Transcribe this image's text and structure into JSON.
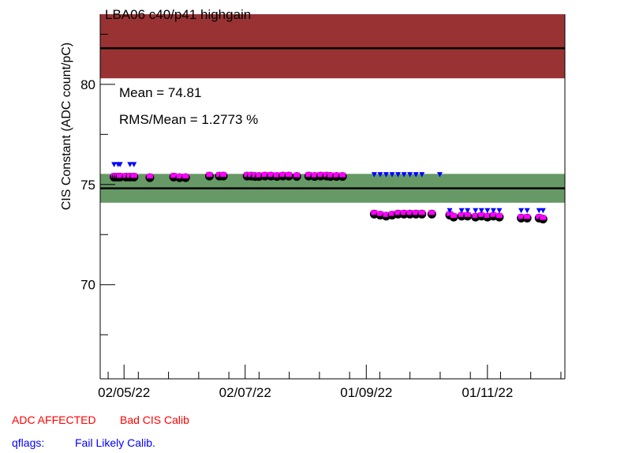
{
  "chart_data": {
    "type": "scatter",
    "title": "LBA06 c40/p41 highgain",
    "ylabel": "CIS Constant (ADC count/pC)",
    "xlabel": "",
    "x_axis_type": "date",
    "xlim": [
      "2022-04-20",
      "2022-12-10"
    ],
    "ylim": [
      65.3,
      83.5
    ],
    "y_ticks": [
      70,
      75,
      80
    ],
    "x_tick_labels": [
      {
        "label": "02/05/22",
        "x": "2022-05-02"
      },
      {
        "label": "02/07/22",
        "x": "2022-07-02"
      },
      {
        "label": "01/09/22",
        "x": "2022-09-01"
      },
      {
        "label": "01/11/22",
        "x": "2022-11-01"
      }
    ],
    "stats": {
      "mean_label": "Mean = 74.81",
      "rms_label": "RMS/Mean = 1.2773 %"
    },
    "mean_line": 74.81,
    "green_band": [
      74.09,
      75.53
    ],
    "reference_line": 81.8,
    "red_band": [
      80.3,
      83.5
    ],
    "colors": {
      "green_band": "#669966",
      "red_band": "#993333",
      "points_black": "#000000",
      "points_magenta": "#ff00ff",
      "flag_triangles": "#0000ff"
    },
    "series": [
      {
        "name": "ADC AFFECTED",
        "marker": "circle",
        "points": [
          [
            "2022-04-27",
            75.45
          ],
          [
            "2022-04-28",
            75.45
          ],
          [
            "2022-04-29",
            75.45
          ],
          [
            "2022-04-30",
            75.45
          ],
          [
            "2022-05-03",
            75.45
          ],
          [
            "2022-05-05",
            75.45
          ],
          [
            "2022-05-07",
            75.45
          ],
          [
            "2022-05-15",
            75.42
          ],
          [
            "2022-05-27",
            75.45
          ],
          [
            "2022-05-30",
            75.42
          ],
          [
            "2022-06-02",
            75.42
          ],
          [
            "2022-06-14",
            75.5
          ],
          [
            "2022-06-19",
            75.5
          ],
          [
            "2022-06-21",
            75.5
          ],
          [
            "2022-07-03",
            75.5
          ],
          [
            "2022-07-05",
            75.5
          ],
          [
            "2022-07-07",
            75.48
          ],
          [
            "2022-07-09",
            75.48
          ],
          [
            "2022-07-12",
            75.5
          ],
          [
            "2022-07-15",
            75.5
          ],
          [
            "2022-07-18",
            75.48
          ],
          [
            "2022-07-21",
            75.5
          ],
          [
            "2022-07-24",
            75.5
          ],
          [
            "2022-07-28",
            75.48
          ],
          [
            "2022-08-03",
            75.5
          ],
          [
            "2022-08-06",
            75.48
          ],
          [
            "2022-08-09",
            75.5
          ],
          [
            "2022-08-12",
            75.5
          ],
          [
            "2022-08-14",
            75.48
          ],
          [
            "2022-08-17",
            75.48
          ],
          [
            "2022-08-20",
            75.48
          ],
          [
            "2022-09-05",
            73.6
          ],
          [
            "2022-09-08",
            73.55
          ],
          [
            "2022-09-11",
            73.5
          ],
          [
            "2022-09-14",
            73.55
          ],
          [
            "2022-09-17",
            73.6
          ],
          [
            "2022-09-20",
            73.6
          ],
          [
            "2022-09-23",
            73.6
          ],
          [
            "2022-09-26",
            73.6
          ],
          [
            "2022-09-29",
            73.6
          ],
          [
            "2022-10-04",
            73.6
          ],
          [
            "2022-10-13",
            73.55
          ],
          [
            "2022-10-15",
            73.45
          ],
          [
            "2022-10-19",
            73.5
          ],
          [
            "2022-10-22",
            73.5
          ],
          [
            "2022-10-26",
            73.45
          ],
          [
            "2022-10-29",
            73.5
          ],
          [
            "2022-11-01",
            73.45
          ],
          [
            "2022-11-04",
            73.5
          ],
          [
            "2022-11-07",
            73.45
          ],
          [
            "2022-11-18",
            73.4
          ],
          [
            "2022-11-21",
            73.4
          ],
          [
            "2022-11-27",
            73.4
          ],
          [
            "2022-11-29",
            73.35
          ]
        ]
      },
      {
        "name": "Fail Likely Calib.",
        "marker": "triangle-down",
        "points": [
          [
            "2022-04-27",
            76.0
          ],
          [
            "2022-04-29",
            76.0
          ],
          [
            "2022-04-30",
            76.0
          ],
          [
            "2022-05-05",
            76.0
          ],
          [
            "2022-05-07",
            76.0
          ],
          [
            "2022-09-05",
            75.5
          ],
          [
            "2022-09-08",
            75.5
          ],
          [
            "2022-09-11",
            75.5
          ],
          [
            "2022-09-14",
            75.5
          ],
          [
            "2022-09-17",
            75.5
          ],
          [
            "2022-09-20",
            75.5
          ],
          [
            "2022-09-23",
            75.5
          ],
          [
            "2022-09-26",
            75.5
          ],
          [
            "2022-09-29",
            75.5
          ],
          [
            "2022-10-08",
            75.5
          ],
          [
            "2022-10-13",
            73.7
          ],
          [
            "2022-10-19",
            73.7
          ],
          [
            "2022-10-22",
            73.7
          ],
          [
            "2022-10-26",
            73.7
          ],
          [
            "2022-10-29",
            73.7
          ],
          [
            "2022-11-01",
            73.7
          ],
          [
            "2022-11-04",
            73.7
          ],
          [
            "2022-11-07",
            73.7
          ],
          [
            "2022-11-18",
            73.7
          ],
          [
            "2022-11-21",
            73.7
          ],
          [
            "2022-11-27",
            73.7
          ],
          [
            "2022-11-29",
            73.7
          ]
        ]
      }
    ]
  },
  "legend": {
    "adc_affected": "ADC AFFECTED",
    "bad_cis_calib": "Bad CIS Calib",
    "qflags_label": "qflags:",
    "fail_likely_calib": "Fail Likely Calib."
  }
}
